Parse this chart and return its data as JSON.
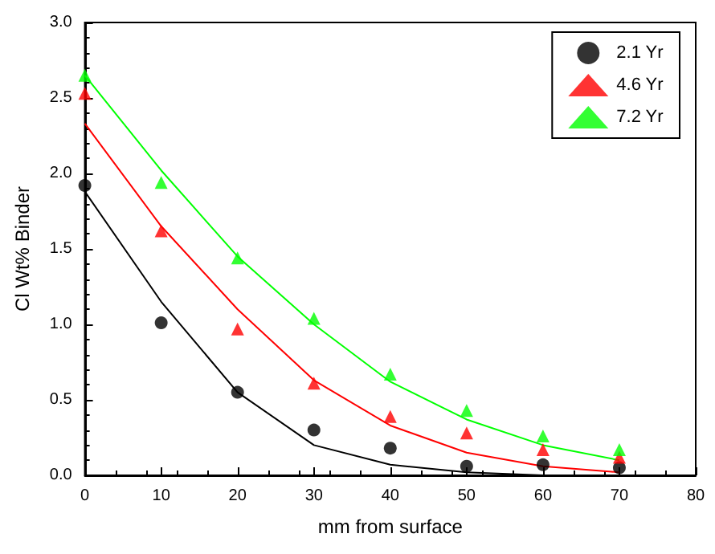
{
  "chart_data": {
    "type": "scatter",
    "xlabel": "mm from surface",
    "ylabel": "Cl Wt% Binder",
    "x": [
      0,
      10,
      20,
      30,
      40,
      50,
      60,
      70
    ],
    "series": [
      {
        "name": "2.1 Yr",
        "color": "#000000",
        "marker": "circle",
        "values": [
          1.92,
          1.01,
          0.55,
          0.3,
          0.18,
          0.06,
          0.07,
          0.05
        ]
      },
      {
        "name": "4.6 Yr",
        "color": "#ff0000",
        "marker": "triangle",
        "values": [
          2.53,
          1.62,
          0.97,
          0.61,
          0.39,
          0.28,
          0.17,
          0.12
        ]
      },
      {
        "name": "7.2 Yr",
        "color": "#00ff00",
        "marker": "triangle",
        "values": [
          2.65,
          1.94,
          1.44,
          1.04,
          0.67,
          0.43,
          0.26,
          0.17
        ]
      },
      {
        "type": "line",
        "color": "#000000",
        "marker": "none",
        "x": [
          0,
          10,
          20,
          30,
          40,
          50,
          60
        ],
        "values": [
          1.88,
          1.15,
          0.55,
          0.2,
          0.07,
          0.02,
          0.0
        ]
      },
      {
        "type": "line",
        "color": "#ff0000",
        "marker": "none",
        "values": [
          2.33,
          1.65,
          1.1,
          0.63,
          0.33,
          0.15,
          0.06,
          0.02
        ]
      },
      {
        "type": "line",
        "color": "#00ff00",
        "marker": "none",
        "values": [
          2.65,
          2.02,
          1.45,
          1.0,
          0.62,
          0.37,
          0.2,
          0.1
        ]
      }
    ],
    "xlim": [
      0,
      80
    ],
    "xticks": [
      0,
      10,
      20,
      30,
      40,
      50,
      60,
      70,
      80
    ],
    "ylim": [
      0,
      3.0
    ],
    "yticks": [
      {
        "value": 0,
        "label": "0.0"
      },
      {
        "value": 0.5,
        "label": "0.5"
      },
      {
        "value": 1,
        "label": "1.0"
      },
      {
        "value": 1.5,
        "label": "1.5"
      },
      {
        "value": 2,
        "label": "2.0"
      },
      {
        "value": 2.5,
        "label": "2.5"
      },
      {
        "value": 3,
        "label": "3.0"
      }
    ],
    "grid": false,
    "legend": "top right"
  }
}
